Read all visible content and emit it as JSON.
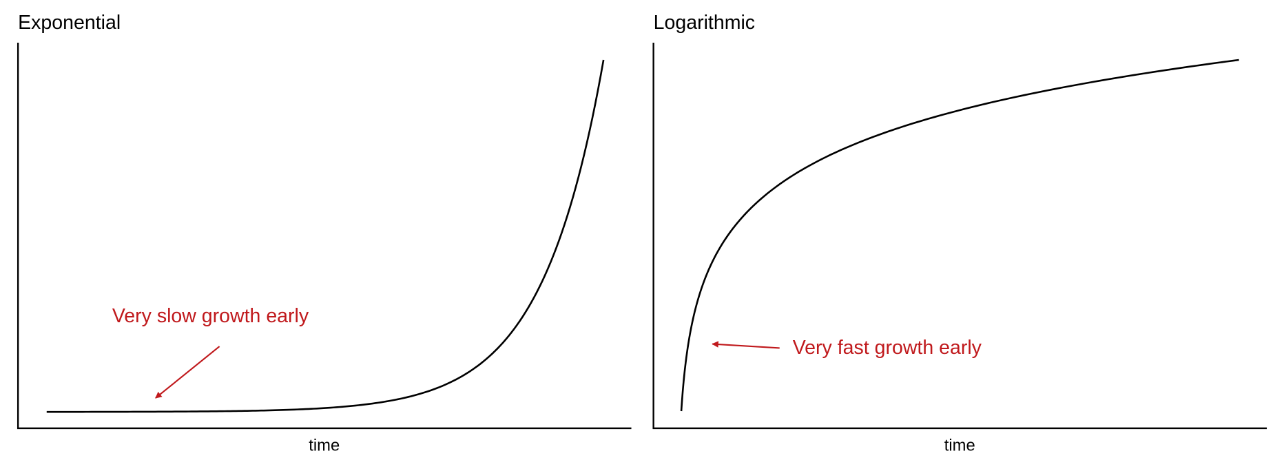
{
  "panels": [
    {
      "title": "Exponential",
      "x_label": "time",
      "annotation": "Very slow growth early"
    },
    {
      "title": "Logarithmic",
      "x_label": "time",
      "annotation": "Very fast growth early"
    }
  ]
}
